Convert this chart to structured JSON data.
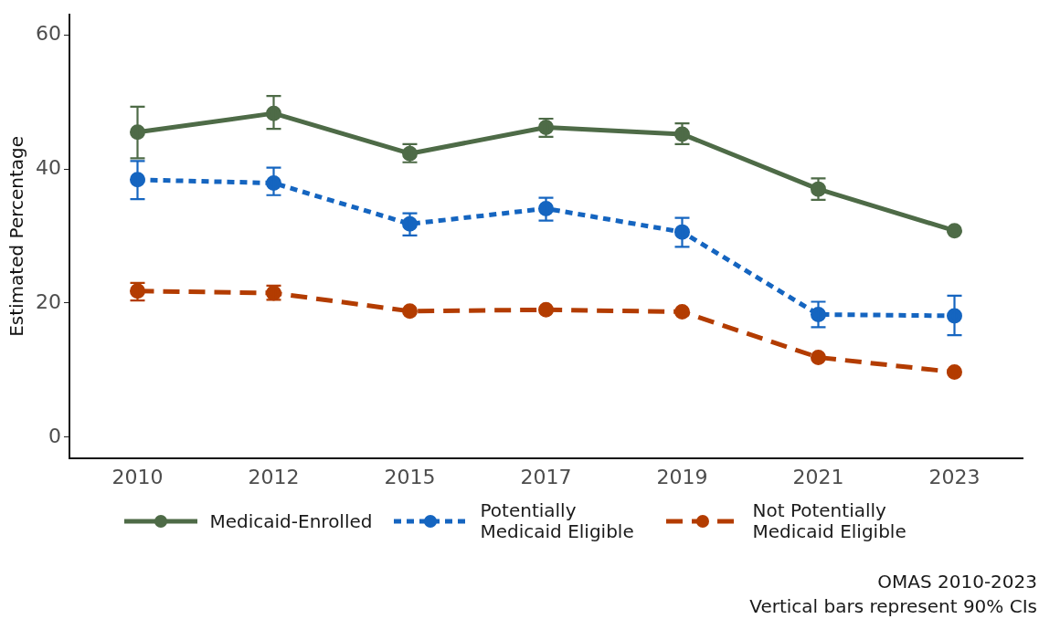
{
  "chart_data": {
    "type": "line",
    "ylabel": "Estimated Percentage",
    "categories": [
      "2010",
      "2012",
      "2015",
      "2017",
      "2019",
      "2021",
      "2023"
    ],
    "series": [
      {
        "name": "Medicaid-Enrolled",
        "color": "#4e6b47",
        "line_style": "solid",
        "values": [
          45.5,
          48.3,
          42.3,
          46.2,
          45.2,
          37.0,
          30.8
        ],
        "errors": [
          [
            41.6,
            49.3
          ],
          [
            46.0,
            50.9
          ],
          [
            41.0,
            43.7
          ],
          [
            44.8,
            47.5
          ],
          [
            43.7,
            46.8
          ],
          [
            35.4,
            38.6
          ],
          null
        ]
      },
      {
        "name": "Potentially Medicaid Eligible",
        "color": "#1565c0",
        "line_style": "dotted",
        "values": [
          38.4,
          37.9,
          31.8,
          34.1,
          30.6,
          18.3,
          18.1
        ],
        "errors": [
          [
            35.5,
            41.2
          ],
          [
            36.1,
            40.2
          ],
          [
            30.1,
            33.4
          ],
          [
            32.3,
            35.7
          ],
          [
            28.4,
            32.7
          ],
          [
            16.4,
            20.2
          ],
          [
            15.2,
            21.1
          ]
        ]
      },
      {
        "name": "Not Potentially Medicaid Eligible",
        "color": "#b33c00",
        "line_style": "dashed",
        "values": [
          21.8,
          21.5,
          18.8,
          19.0,
          18.7,
          11.9,
          9.7
        ],
        "errors": [
          [
            20.4,
            23.0
          ],
          [
            20.5,
            22.6
          ],
          null,
          null,
          null,
          null,
          null
        ]
      }
    ],
    "ylim": [
      -3.1,
      63
    ],
    "yticks": [
      0,
      20,
      40,
      60
    ],
    "grid": false,
    "marker": "circle",
    "legend": "bottom",
    "annotations": [
      "OMAS 2010-2023",
      "Vertical bars represent 90% CIs"
    ]
  }
}
